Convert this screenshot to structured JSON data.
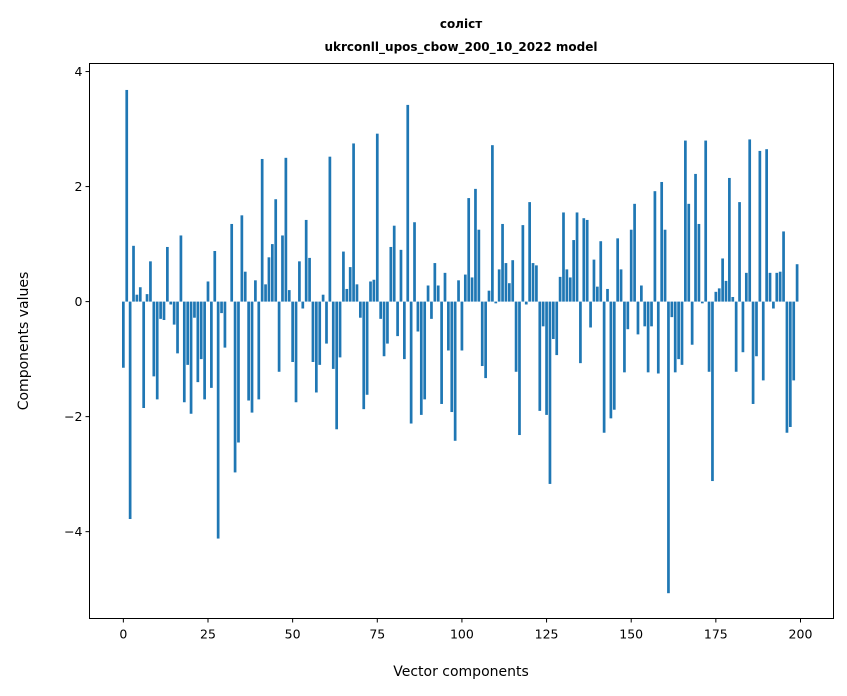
{
  "chart_data": {
    "type": "bar",
    "title": [
      "солiст",
      "ukrconll_upos_cbow_200_10_2022 model"
    ],
    "xlabel": "Vector components",
    "ylabel": "Components values",
    "xlim": [
      -10,
      209.75
    ],
    "ylim": [
      -5.51,
      4.14
    ],
    "xticks": [
      0,
      25,
      50,
      75,
      100,
      125,
      150,
      175,
      200
    ],
    "yticks": [
      -4,
      -2,
      0,
      2,
      4
    ],
    "ytick_labels": [
      "−4",
      "−2",
      "0",
      "2",
      "4"
    ],
    "grid": false,
    "bar_color": "#1f77b4",
    "values": [
      -1.15,
      3.68,
      -3.78,
      0.97,
      0.12,
      0.25,
      -1.85,
      0.13,
      0.7,
      -1.3,
      -1.7,
      -0.3,
      -0.32,
      0.95,
      -0.05,
      -0.4,
      -0.9,
      1.15,
      -1.75,
      -1.1,
      -1.95,
      -0.28,
      -1.4,
      -1.0,
      -1.7,
      0.35,
      -1.5,
      0.88,
      -4.12,
      -0.2,
      -0.8,
      0.0,
      1.35,
      -2.97,
      -2.45,
      1.5,
      0.52,
      -1.72,
      -1.93,
      0.37,
      -1.7,
      2.48,
      0.3,
      0.77,
      1.0,
      1.78,
      -1.22,
      1.15,
      2.5,
      0.2,
      -1.05,
      -1.75,
      0.7,
      -0.12,
      1.42,
      0.76,
      -1.05,
      -1.58,
      -1.1,
      0.12,
      -0.73,
      2.52,
      -1.17,
      -2.22,
      -0.97,
      0.87,
      0.22,
      0.6,
      2.75,
      0.3,
      -0.28,
      -1.87,
      -1.62,
      0.35,
      0.38,
      2.92,
      -0.3,
      -0.95,
      -0.73,
      0.95,
      1.32,
      -0.6,
      0.9,
      -1.0,
      3.42,
      -2.12,
      1.38,
      -0.52,
      -1.97,
      -1.7,
      0.28,
      -0.3,
      0.67,
      0.28,
      -1.78,
      0.5,
      -0.85,
      -1.92,
      -2.42,
      0.37,
      -0.85,
      0.47,
      1.8,
      0.42,
      1.96,
      1.25,
      -1.12,
      -1.33,
      0.19,
      2.72,
      -0.03,
      0.56,
      1.35,
      0.67,
      0.32,
      0.72,
      -1.22,
      -2.32,
      1.33,
      -0.05,
      1.73,
      0.67,
      0.63,
      -1.9,
      -0.43,
      -1.97,
      -3.17,
      -0.65,
      -0.93,
      0.43,
      1.55,
      0.56,
      0.42,
      1.07,
      1.55,
      -1.07,
      1.45,
      1.42,
      -0.45,
      0.73,
      0.26,
      1.05,
      -2.28,
      0.22,
      -2.03,
      -1.88,
      1.1,
      0.56,
      -1.23,
      -0.48,
      1.25,
      1.7,
      -0.57,
      0.28,
      -0.43,
      -1.23,
      -0.43,
      1.92,
      -1.25,
      2.08,
      1.25,
      -5.07,
      -0.27,
      -1.23,
      -1.0,
      -1.1,
      2.8,
      1.7,
      -0.75,
      2.22,
      1.35,
      -0.03,
      2.8,
      -1.22,
      -3.12,
      0.17,
      0.23,
      0.75,
      0.36,
      2.15,
      0.08,
      -1.22,
      1.73,
      -0.88,
      0.5,
      2.82,
      -1.78,
      -0.95,
      2.62,
      -1.37,
      2.65,
      0.5,
      -0.12,
      0.5,
      0.52,
      1.22,
      -2.28,
      -2.18,
      -1.37,
      0.65
    ]
  }
}
